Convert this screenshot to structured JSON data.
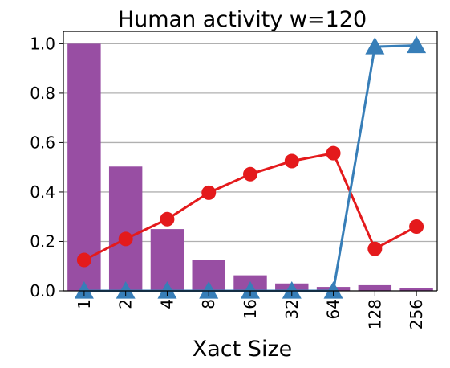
{
  "chart_data": {
    "type": "bar",
    "title": "Human activity w=120",
    "xlabel": "Xact Size",
    "ylabel": "",
    "categories": [
      "1",
      "2",
      "4",
      "8",
      "16",
      "32",
      "64",
      "128",
      "256"
    ],
    "ylim": [
      0,
      1.05
    ],
    "yticks": [
      0.0,
      0.2,
      0.4,
      0.6,
      0.8,
      1.0
    ],
    "ytick_labels": [
      "0.0",
      "0.2",
      "0.4",
      "0.6",
      "0.8",
      "1.0"
    ],
    "grid": "horizontal",
    "series": [
      {
        "type": "bar",
        "color": "#984ea3",
        "values": [
          1.0,
          0.503,
          0.25,
          0.125,
          0.063,
          0.03,
          0.016,
          0.023,
          0.012
        ]
      },
      {
        "type": "line",
        "marker": "circle",
        "color": "#e41a1c",
        "values": [
          0.125,
          0.21,
          0.29,
          0.397,
          0.472,
          0.525,
          0.557,
          0.17,
          0.26
        ]
      },
      {
        "type": "line",
        "marker": "triangle",
        "color": "#377eb8",
        "values": [
          0.0,
          0.0,
          0.0,
          0.0,
          0.0,
          0.0,
          0.0,
          0.988,
          0.993
        ]
      }
    ]
  }
}
